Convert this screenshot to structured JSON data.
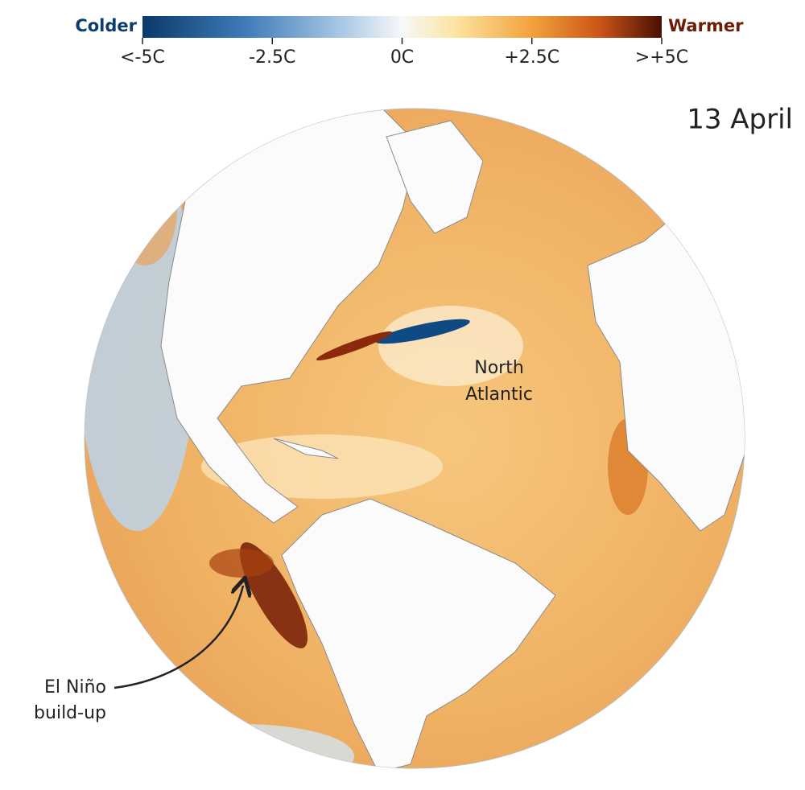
{
  "legend": {
    "low_label": "Colder",
    "high_label": "Warmer",
    "range": [
      -5,
      5
    ],
    "ticks": [
      {
        "value": -5,
        "label": "<-5C"
      },
      {
        "value": -2.5,
        "label": "-2.5C"
      },
      {
        "value": 0,
        "label": "0C"
      },
      {
        "value": 2.5,
        "label": "+2.5C"
      },
      {
        "value": 5,
        "label": ">+5C"
      }
    ]
  },
  "date": "13 April",
  "annotations": {
    "north_atlantic": [
      "North",
      "Atlantic"
    ],
    "el_nino": [
      "El Niño",
      "build-up"
    ]
  }
}
